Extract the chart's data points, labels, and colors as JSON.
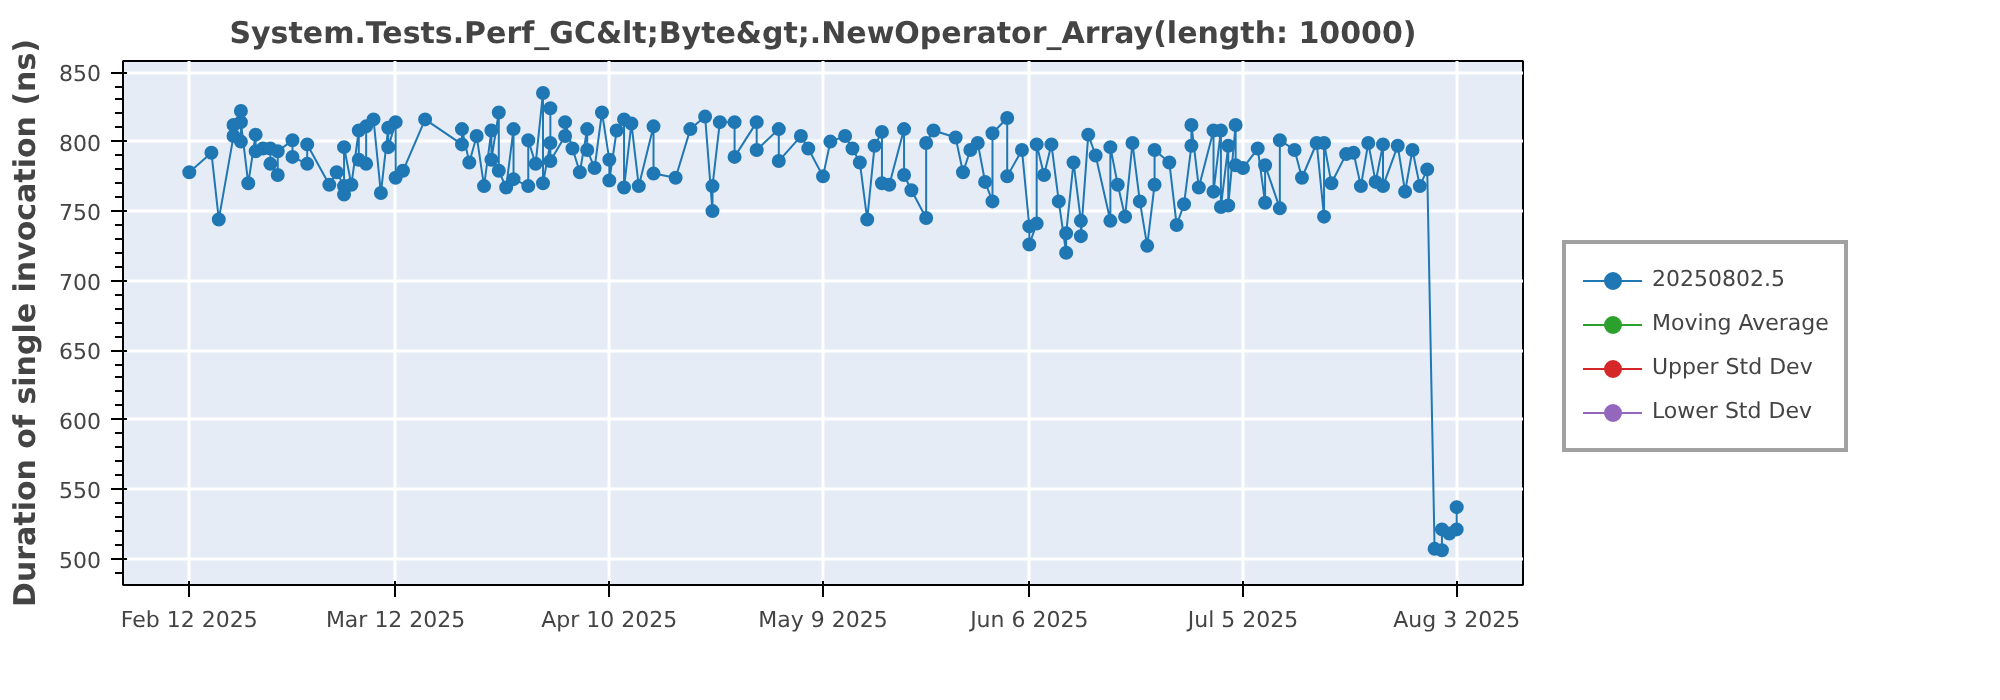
{
  "chart_data": {
    "type": "line",
    "title": "System.Tests.Perf_GC&lt;Byte&gt;.NewOperator_Array(length: 10000)",
    "ylabel": "Duration of single invocation (ns)",
    "xlim": [
      "2025-02-03",
      "2025-08-12"
    ],
    "ylim": [
      481,
      858
    ],
    "xticks": [
      {
        "value": "2025-02-12",
        "label": "Feb 12 2025"
      },
      {
        "value": "2025-03-12",
        "label": "Mar 12 2025"
      },
      {
        "value": "2025-04-10",
        "label": "Apr 10 2025"
      },
      {
        "value": "2025-05-09",
        "label": "May 9 2025"
      },
      {
        "value": "2025-06-06",
        "label": "Jun 6 2025"
      },
      {
        "value": "2025-07-05",
        "label": "Jul 5 2025"
      },
      {
        "value": "2025-08-03",
        "label": "Aug 3 2025"
      }
    ],
    "yticks": [
      500,
      550,
      600,
      650,
      700,
      750,
      800,
      850
    ],
    "grid": true,
    "legend": "right",
    "marker": "circle",
    "line_style": "solid",
    "series": [
      {
        "name": "20250802.5",
        "color": "#1f77b4",
        "x": [
          "2025-02-12",
          "2025-02-15",
          "2025-02-16",
          "2025-02-18",
          "2025-02-18",
          "2025-02-19",
          "2025-02-19",
          "2025-02-19",
          "2025-02-20",
          "2025-02-21",
          "2025-02-21",
          "2025-02-22",
          "2025-02-23",
          "2025-02-23",
          "2025-02-24",
          "2025-02-24",
          "2025-02-26",
          "2025-02-26",
          "2025-02-28",
          "2025-02-28",
          "2025-03-03",
          "2025-03-04",
          "2025-03-05",
          "2025-03-05",
          "2025-03-05",
          "2025-03-06",
          "2025-03-07",
          "2025-03-07",
          "2025-03-08",
          "2025-03-08",
          "2025-03-09",
          "2025-03-10",
          "2025-03-11",
          "2025-03-11",
          "2025-03-12",
          "2025-03-12",
          "2025-03-13",
          "2025-03-16",
          "2025-03-21",
          "2025-03-21",
          "2025-03-22",
          "2025-03-23",
          "2025-03-24",
          "2025-03-25",
          "2025-03-25",
          "2025-03-26",
          "2025-03-26",
          "2025-03-27",
          "2025-03-28",
          "2025-03-28",
          "2025-03-30",
          "2025-03-30",
          "2025-03-31",
          "2025-04-01",
          "2025-04-01",
          "2025-04-02",
          "2025-04-02",
          "2025-04-02",
          "2025-04-04",
          "2025-04-04",
          "2025-04-05",
          "2025-04-06",
          "2025-04-07",
          "2025-04-07",
          "2025-04-08",
          "2025-04-09",
          "2025-04-10",
          "2025-04-10",
          "2025-04-11",
          "2025-04-12",
          "2025-04-12",
          "2025-04-13",
          "2025-04-14",
          "2025-04-16",
          "2025-04-16",
          "2025-04-19",
          "2025-04-21",
          "2025-04-23",
          "2025-04-24",
          "2025-04-24",
          "2025-04-25",
          "2025-04-27",
          "2025-04-27",
          "2025-04-30",
          "2025-04-30",
          "2025-05-03",
          "2025-05-03",
          "2025-05-06",
          "2025-05-07",
          "2025-05-09",
          "2025-05-10",
          "2025-05-12",
          "2025-05-13",
          "2025-05-14",
          "2025-05-15",
          "2025-05-16",
          "2025-05-17",
          "2025-05-17",
          "2025-05-18",
          "2025-05-20",
          "2025-05-20",
          "2025-05-21",
          "2025-05-23",
          "2025-05-23",
          "2025-05-24",
          "2025-05-27",
          "2025-05-28",
          "2025-05-29",
          "2025-05-30",
          "2025-05-31",
          "2025-06-01",
          "2025-06-01",
          "2025-06-03",
          "2025-06-03",
          "2025-06-05",
          "2025-06-06",
          "2025-06-06",
          "2025-06-07",
          "2025-06-07",
          "2025-06-08",
          "2025-06-09",
          "2025-06-10",
          "2025-06-11",
          "2025-06-11",
          "2025-06-12",
          "2025-06-13",
          "2025-06-13",
          "2025-06-14",
          "2025-06-15",
          "2025-06-17",
          "2025-06-17",
          "2025-06-18",
          "2025-06-19",
          "2025-06-20",
          "2025-06-21",
          "2025-06-22",
          "2025-06-23",
          "2025-06-23",
          "2025-06-25",
          "2025-06-26",
          "2025-06-27",
          "2025-06-28",
          "2025-06-28",
          "2025-06-29",
          "2025-07-01",
          "2025-07-01",
          "2025-07-02",
          "2025-07-02",
          "2025-07-03",
          "2025-07-03",
          "2025-07-04",
          "2025-07-04",
          "2025-07-05",
          "2025-07-07",
          "2025-07-08",
          "2025-07-08",
          "2025-07-10",
          "2025-07-10",
          "2025-07-12",
          "2025-07-13",
          "2025-07-15",
          "2025-07-16",
          "2025-07-16",
          "2025-07-17",
          "2025-07-19",
          "2025-07-20",
          "2025-07-21",
          "2025-07-22",
          "2025-07-23",
          "2025-07-24",
          "2025-07-24",
          "2025-07-26",
          "2025-07-27",
          "2025-07-28",
          "2025-07-29",
          "2025-07-30",
          "2025-07-31",
          "2025-08-01",
          "2025-08-01",
          "2025-08-02",
          "2025-08-03",
          "2025-08-03"
        ],
        "values": [
          778,
          792,
          744,
          804,
          812,
          822,
          800,
          814,
          770,
          805,
          793,
          795,
          795,
          784,
          776,
          793,
          801,
          789,
          784,
          798,
          769,
          778,
          768,
          762,
          796,
          769,
          808,
          787,
          784,
          811,
          816,
          763,
          810,
          796,
          814,
          774,
          779,
          816,
          798,
          809,
          785,
          804,
          768,
          808,
          787,
          821,
          779,
          767,
          809,
          773,
          768,
          801,
          784,
          835,
          770,
          799,
          824,
          786,
          804,
          814,
          795,
          778,
          809,
          794,
          781,
          821,
          787,
          772,
          808,
          816,
          767,
          813,
          768,
          811,
          777,
          774,
          809,
          818,
          750,
          768,
          814,
          814,
          789,
          814,
          794,
          809,
          786,
          804,
          795,
          775,
          800,
          804,
          795,
          785,
          744,
          797,
          807,
          770,
          769,
          809,
          776,
          765,
          745,
          799,
          808,
          803,
          778,
          794,
          799,
          771,
          757,
          806,
          817,
          775,
          794,
          739,
          726,
          741,
          798,
          776,
          798,
          757,
          720,
          734,
          785,
          743,
          732,
          805,
          790,
          743,
          796,
          769,
          746,
          799,
          757,
          725,
          769,
          794,
          785,
          740,
          755,
          797,
          812,
          767,
          808,
          764,
          808,
          753,
          797,
          754,
          812,
          783,
          781,
          795,
          756,
          783,
          752,
          801,
          794,
          774,
          799,
          746,
          799,
          770,
          791,
          792,
          768,
          799,
          771,
          798,
          768,
          797,
          764,
          794,
          768,
          780,
          507,
          506,
          521,
          518,
          521,
          537
        ]
      },
      {
        "name": "Moving Average",
        "color": "#2ca02c"
      },
      {
        "name": "Upper Std Dev",
        "color": "#d62728"
      },
      {
        "name": "Lower Std Dev",
        "color": "#9467bd"
      }
    ]
  }
}
